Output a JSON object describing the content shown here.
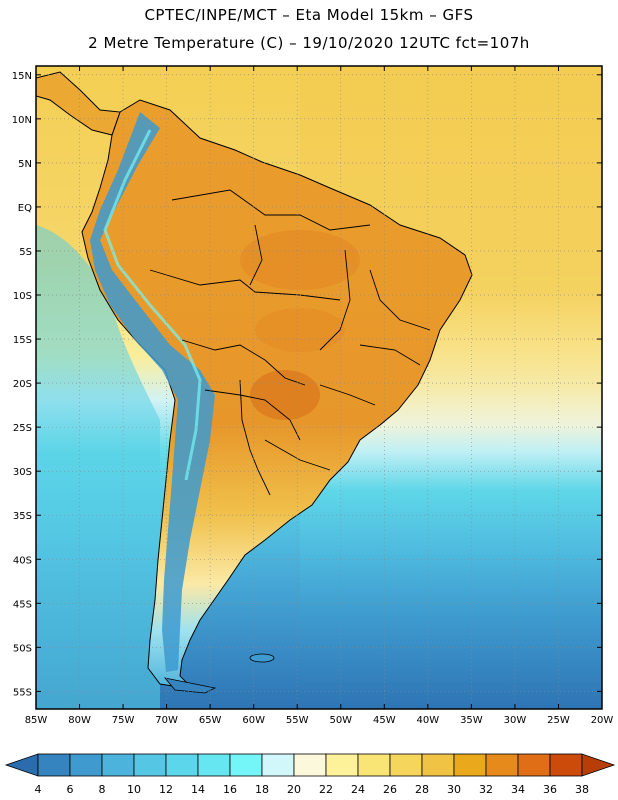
{
  "header": {
    "line1": "CPTEC/INPE/MCT –  Eta Model 15km – GFS",
    "line2": "2 Metre Temperature (C) – 19/10/2020 12UTC fct=107h"
  },
  "map": {
    "lat_labels": [
      "15N",
      "10N",
      "5N",
      "EQ",
      "5S",
      "10S",
      "15S",
      "20S",
      "25S",
      "30S",
      "35S",
      "40S",
      "45S",
      "50S",
      "55S"
    ],
    "lon_labels": [
      "85W",
      "80W",
      "75W",
      "70W",
      "65W",
      "60W",
      "55W",
      "50W",
      "45W",
      "40W",
      "35W",
      "30W",
      "25W",
      "20W"
    ],
    "lon_range": [
      -85,
      -20
    ],
    "lat_range": [
      -57,
      16
    ],
    "colors": {
      "ocean_warm": "#f2c94a",
      "ocean_cool": "#59d6e6",
      "land_hot": "#e89a2a",
      "andes": "#2f8fc7",
      "border": "#000000",
      "grid": "#9a9a9a"
    }
  },
  "colorbar": {
    "labels": [
      "4",
      "6",
      "8",
      "10",
      "12",
      "14",
      "16",
      "18",
      "20",
      "22",
      "24",
      "26",
      "28",
      "30",
      "32",
      "34",
      "36",
      "38"
    ],
    "colors": [
      "#2a6cad",
      "#3584bf",
      "#3f9bcf",
      "#4cb3dc",
      "#55c6e4",
      "#5cd6ea",
      "#66e6f0",
      "#74f5f7",
      "#d2f7fb",
      "#fcf8dc",
      "#fdf29a",
      "#f9e575",
      "#f5d55b",
      "#f0c345",
      "#eaa81d",
      "#e78a1c",
      "#df6e16",
      "#cc4b0a",
      "#b83e08"
    ]
  }
}
